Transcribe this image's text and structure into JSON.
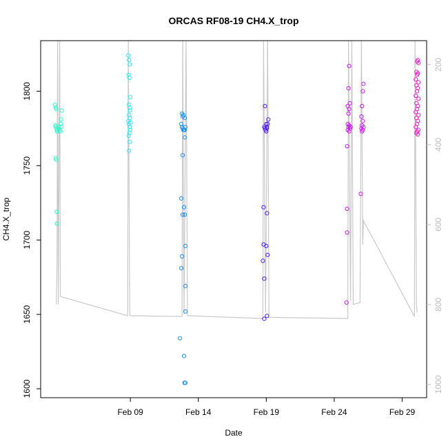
{
  "chart_data": {
    "type": "scatter",
    "title": "ORCAS RF08-19 CH4.X_trop",
    "xlabel": "Date",
    "ylabel": "CH4.X_trop",
    "x_ticks": [
      {
        "day": 9,
        "label": "Feb 09"
      },
      {
        "day": 14,
        "label": "Feb 14"
      },
      {
        "day": 19,
        "label": "Feb 19"
      },
      {
        "day": 24,
        "label": "Feb 24"
      },
      {
        "day": 29,
        "label": "Feb 29"
      }
    ],
    "xlim": [
      2.4,
      30.8
    ],
    "ylim": [
      1594,
      1834
    ],
    "y_ticks": [
      1600,
      1650,
      1700,
      1750,
      1800
    ],
    "y2_ticks": [
      200,
      400,
      600,
      800,
      1000
    ],
    "y2lim": [
      1033,
      140
    ],
    "grid": false,
    "pressure_track": [
      [
        3.55,
        800
      ],
      [
        3.6,
        700
      ],
      [
        3.65,
        140
      ],
      [
        3.7,
        800
      ],
      [
        3.8,
        140
      ],
      [
        3.85,
        780
      ],
      [
        8.8,
        828
      ],
      [
        8.85,
        140
      ],
      [
        8.95,
        820
      ],
      [
        9.0,
        828
      ],
      [
        12.8,
        830
      ],
      [
        12.85,
        140
      ],
      [
        12.95,
        825
      ],
      [
        13.1,
        140
      ],
      [
        13.2,
        828
      ],
      [
        18.75,
        835
      ],
      [
        18.8,
        140
      ],
      [
        18.95,
        820
      ],
      [
        19.1,
        140
      ],
      [
        19.2,
        832
      ],
      [
        25.0,
        835
      ],
      [
        25.05,
        140
      ],
      [
        25.2,
        790
      ],
      [
        25.3,
        140
      ],
      [
        25.4,
        800
      ],
      [
        25.9,
        795
      ],
      [
        26.0,
        140
      ],
      [
        26.1,
        650
      ],
      [
        26.15,
        590
      ],
      [
        29.9,
        830
      ],
      [
        29.95,
        140
      ],
      [
        30.05,
        800
      ],
      [
        30.1,
        820
      ]
    ],
    "series": [
      {
        "color": "#33f5c9",
        "points": [
          [
            3.45,
            1791
          ],
          [
            3.5,
            1789
          ],
          [
            3.55,
            1788
          ],
          [
            3.48,
            1777
          ],
          [
            3.52,
            1776
          ],
          [
            3.58,
            1775
          ],
          [
            3.6,
            1774
          ],
          [
            3.62,
            1773
          ],
          [
            3.7,
            1776
          ],
          [
            3.75,
            1775
          ],
          [
            3.8,
            1774
          ],
          [
            3.85,
            1773
          ],
          [
            3.9,
            1781
          ],
          [
            3.95,
            1787
          ],
          [
            3.5,
            1755
          ],
          [
            3.55,
            1754
          ],
          [
            3.58,
            1719
          ],
          [
            3.6,
            1711
          ],
          [
            3.88,
            1778
          ],
          [
            3.92,
            1776
          ]
        ]
      },
      {
        "color": "#23f2f2",
        "points": [
          [
            8.85,
            1824
          ],
          [
            8.9,
            1821
          ],
          [
            8.95,
            1818
          ],
          [
            8.87,
            1811
          ],
          [
            8.92,
            1809
          ],
          [
            9.0,
            1796
          ],
          [
            8.88,
            1791
          ],
          [
            8.93,
            1789
          ],
          [
            8.97,
            1787
          ],
          [
            8.9,
            1784
          ],
          [
            8.95,
            1782
          ],
          [
            8.85,
            1780
          ],
          [
            8.9,
            1778
          ],
          [
            8.95,
            1776
          ],
          [
            9.0,
            1774
          ],
          [
            8.92,
            1772
          ],
          [
            8.88,
            1770
          ],
          [
            8.95,
            1766
          ],
          [
            8.9,
            1760
          ],
          [
            9.02,
            1779
          ]
        ]
      },
      {
        "color": "#1f8ff2",
        "points": [
          [
            12.8,
            1785
          ],
          [
            12.9,
            1784
          ],
          [
            12.85,
            1783
          ],
          [
            13.0,
            1782
          ],
          [
            12.75,
            1778
          ],
          [
            12.8,
            1776
          ],
          [
            12.85,
            1775
          ],
          [
            12.9,
            1774
          ],
          [
            12.95,
            1774
          ],
          [
            13.0,
            1774
          ],
          [
            13.05,
            1776
          ],
          [
            13.0,
            1769
          ],
          [
            12.85,
            1757
          ],
          [
            12.75,
            1728
          ],
          [
            12.95,
            1722
          ],
          [
            12.85,
            1717
          ],
          [
            13.0,
            1717
          ],
          [
            13.05,
            1696
          ],
          [
            12.8,
            1689
          ],
          [
            12.75,
            1681
          ],
          [
            13.05,
            1669
          ],
          [
            13.05,
            1652
          ],
          [
            12.65,
            1634
          ],
          [
            12.95,
            1622
          ],
          [
            12.98,
            1604
          ],
          [
            13.05,
            1604
          ]
        ]
      },
      {
        "color": "#4f1bf2",
        "points": [
          [
            18.9,
            1790
          ],
          [
            19.0,
            1778
          ],
          [
            19.05,
            1776
          ],
          [
            18.9,
            1775
          ],
          [
            18.95,
            1774
          ],
          [
            19.0,
            1773
          ],
          [
            19.05,
            1775
          ],
          [
            19.1,
            1778
          ],
          [
            18.85,
            1776
          ],
          [
            19.15,
            1781
          ],
          [
            18.8,
            1722
          ],
          [
            19.05,
            1718
          ],
          [
            18.8,
            1697
          ],
          [
            19.0,
            1696
          ],
          [
            19.1,
            1690
          ],
          [
            18.75,
            1686
          ],
          [
            18.85,
            1674
          ],
          [
            19.05,
            1649
          ],
          [
            18.85,
            1647
          ]
        ]
      },
      {
        "color": "#c51bea",
        "points": [
          [
            25.1,
            1817
          ],
          [
            25.05,
            1802
          ],
          [
            25.15,
            1792
          ],
          [
            25.0,
            1790
          ],
          [
            25.1,
            1788
          ],
          [
            25.05,
            1785
          ],
          [
            25.0,
            1778
          ],
          [
            25.1,
            1777
          ],
          [
            25.05,
            1776
          ],
          [
            25.15,
            1775
          ],
          [
            25.0,
            1774
          ],
          [
            25.1,
            1773
          ],
          [
            25.2,
            1776
          ],
          [
            24.95,
            1763
          ],
          [
            24.95,
            1721
          ],
          [
            24.95,
            1705
          ],
          [
            24.9,
            1658
          ],
          [
            26.15,
            1805
          ],
          [
            26.1,
            1800
          ],
          [
            26.05,
            1790
          ],
          [
            26.0,
            1783
          ],
          [
            26.1,
            1780
          ],
          [
            26.05,
            1777
          ],
          [
            26.15,
            1776
          ],
          [
            26.0,
            1775
          ],
          [
            26.1,
            1774
          ],
          [
            26.05,
            1773
          ],
          [
            25.95,
            1731
          ]
        ]
      },
      {
        "color": "#ea1fc5",
        "points": [
          [
            30.15,
            1821
          ],
          [
            30.1,
            1820
          ],
          [
            30.2,
            1819
          ],
          [
            30.05,
            1813
          ],
          [
            30.15,
            1812
          ],
          [
            30.1,
            1811
          ],
          [
            30.0,
            1808
          ],
          [
            30.2,
            1806
          ],
          [
            30.05,
            1804
          ],
          [
            30.15,
            1802
          ],
          [
            30.1,
            1800
          ],
          [
            30.0,
            1797
          ],
          [
            30.2,
            1795
          ],
          [
            30.05,
            1792
          ],
          [
            30.15,
            1790
          ],
          [
            30.1,
            1788
          ],
          [
            30.0,
            1786
          ],
          [
            30.2,
            1784
          ],
          [
            30.05,
            1782
          ],
          [
            30.15,
            1780
          ],
          [
            30.1,
            1778
          ],
          [
            30.0,
            1776
          ],
          [
            30.2,
            1774
          ],
          [
            30.05,
            1772
          ],
          [
            30.15,
            1771
          ],
          [
            30.1,
            1773
          ]
        ]
      }
    ]
  },
  "colors": {
    "track": "#c8c8c8",
    "axis": "#000000",
    "right_axis": "#bdbdbd"
  }
}
